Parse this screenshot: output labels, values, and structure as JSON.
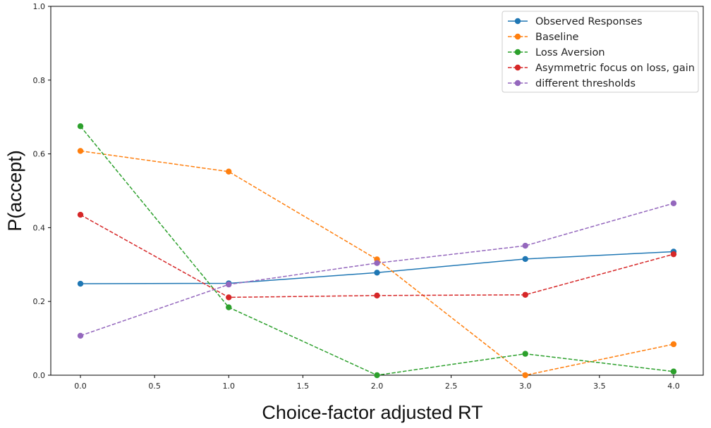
{
  "chart_data": {
    "type": "line",
    "title": "",
    "xlabel": "Choice-factor adjusted RT",
    "ylabel": "P(accept)",
    "xlim": [
      -0.2,
      4.2
    ],
    "ylim": [
      0,
      1
    ],
    "x_ticks": [
      "0.0",
      "0.5",
      "1.0",
      "1.5",
      "2.0",
      "2.5",
      "3.0",
      "3.5",
      "4.0"
    ],
    "y_ticks": [
      "0.0",
      "0.2",
      "0.4",
      "0.6",
      "0.8",
      "1.0"
    ],
    "grid": false,
    "legend_position": "top-right",
    "x": [
      0,
      1,
      2,
      3,
      4
    ],
    "series": [
      {
        "name": "Observed Responses",
        "values": [
          0.248,
          0.249,
          0.278,
          0.315,
          0.335
        ],
        "color": "#1f77b4",
        "dashed": false
      },
      {
        "name": "Baseline",
        "values": [
          0.608,
          0.552,
          0.314,
          0.0,
          0.084
        ],
        "color": "#ff7f0e",
        "dashed": true
      },
      {
        "name": "Loss Aversion",
        "values": [
          0.675,
          0.184,
          0.0,
          0.058,
          0.01
        ],
        "color": "#2ca02c",
        "dashed": true
      },
      {
        "name": "Asymmetric focus on loss, gain",
        "values": [
          0.435,
          0.211,
          0.216,
          0.218,
          0.328
        ],
        "color": "#d62728",
        "dashed": true
      },
      {
        "name": "different thresholds",
        "values": [
          0.107,
          0.246,
          0.304,
          0.351,
          0.466
        ],
        "color": "#9467bd",
        "dashed": true
      }
    ]
  }
}
